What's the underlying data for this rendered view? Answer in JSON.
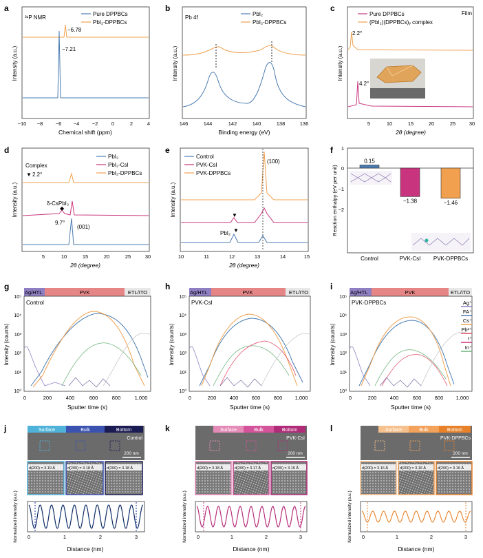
{
  "colors": {
    "blue": "#4a7bb0",
    "orange": "#f0a04e",
    "magenta": "#c8357e",
    "purple": "#8f7fc2",
    "green": "#6db37a",
    "red": "#e0506a",
    "grey": "#c7c7c7",
    "navy": "#1c1c54",
    "sky": "#4fb3d9"
  },
  "panels": {
    "a": {
      "letter": "a",
      "inner_title": "³¹P NMR",
      "xlabel": "Chemical shift (ppm)",
      "ylabel": "Intensity (a.u.)",
      "xticks": [
        "−10",
        "−8",
        "−6",
        "−4",
        "−2",
        "0",
        "2",
        "4"
      ],
      "legend": [
        "Pure DPPBCs",
        "PbI₂-DPPBCs"
      ],
      "annotations": [
        "−6.78",
        "−7.21"
      ]
    },
    "b": {
      "letter": "b",
      "inner_title": "Pb 4f",
      "xlabel": "Binding energy (eV)",
      "ylabel": "Intensity (a.u.)",
      "xticks": [
        "146",
        "144",
        "142",
        "140",
        "138",
        "136"
      ],
      "legend": [
        "PbI₂",
        "PbI₂-DPPBCs"
      ]
    },
    "c": {
      "letter": "c",
      "inner_title": "Film",
      "xlabel": "2θ (degree)",
      "ylabel": "Intensity (a.u.)",
      "xticks": [
        "5",
        "10",
        "15",
        "20",
        "25",
        "30"
      ],
      "legend": [
        "Pure DPPBCs",
        "(PbI₂)(DPPBCs)ᵧ complex"
      ],
      "annotations": [
        "2.2°",
        "4.2°"
      ]
    },
    "d": {
      "letter": "d",
      "xlabel": "2θ (degree)",
      "ylabel": "Intensity (a.u.)",
      "xticks": [
        "5",
        "10",
        "15",
        "20",
        "25",
        "30"
      ],
      "legend": [
        "PbI₂",
        "PbI₂-CsI",
        "PbI₂-DPPBCs"
      ],
      "annotations": [
        "Complex",
        "2.2°",
        "δ-CsPbI₃",
        "9.7°",
        "(001)"
      ]
    },
    "e": {
      "letter": "e",
      "xlabel": "2θ (degree)",
      "ylabel": "Intensity (a.u.)",
      "xticks": [
        "10",
        "11",
        "12",
        "13",
        "14",
        "15"
      ],
      "legend": [
        "Control",
        "PVK-CsI",
        "PVK-DPPBCs"
      ],
      "annotations": [
        "(100)",
        "PbI₂"
      ]
    },
    "f": {
      "letter": "f",
      "ylabel": "Reaction enthalpy (eV per unit)",
      "yticks": [
        "1",
        "0",
        "−1",
        "−2"
      ],
      "ylim": [
        -2,
        1
      ]
    },
    "g": {
      "letter": "g",
      "sample": "Control"
    },
    "h": {
      "letter": "h",
      "sample": "PVK-CsI"
    },
    "i": {
      "letter": "i",
      "sample": "PVK-DPPBCs"
    },
    "sputter": {
      "xlabel": "Sputter time (s)",
      "ylabel": "Intensity (counts)",
      "xticks": [
        "0",
        "200",
        "400",
        "600",
        "800",
        "1,000"
      ],
      "yticks": [
        "10⁰",
        "10¹",
        "10²",
        "10³",
        "10⁴",
        "10⁵"
      ],
      "layers": [
        "Ag/HTL",
        "PVK",
        "ETL/ITO"
      ],
      "ions": [
        "Ag⁺",
        "FA⁺",
        "Cs⁺",
        "Pb²⁺",
        "I⁺",
        "In⁺"
      ]
    },
    "j": {
      "letter": "j",
      "sample": "Control",
      "d_values": [
        "3.19 Å",
        "3.18 Å",
        "3.18 Å"
      ]
    },
    "k": {
      "letter": "k",
      "sample": "PVK-CsI",
      "d_values": [
        "3.18 Å",
        "3.17 Å",
        "3.15 Å"
      ]
    },
    "l": {
      "letter": "l",
      "sample": "PVK-DPPBCs",
      "d_values": [
        "3.16 Å",
        "3.16 Å",
        "3.16 Å"
      ]
    },
    "tem": {
      "regions": [
        "Surface",
        "Bulk",
        "Bottom"
      ],
      "scale": "200 nm",
      "d_label": "d(200) =",
      "xlabel": "Distance (nm)",
      "ylabel": "Normalized intensity (a.u.)",
      "xticks": [
        "0",
        "1",
        "2",
        "3"
      ]
    }
  },
  "chart_data": [
    {
      "panel": "f",
      "type": "bar",
      "categories": [
        "Control",
        "PVK-CsI",
        "PVK-DPPBCs"
      ],
      "values": [
        0.15,
        -1.38,
        -1.46
      ],
      "labels": [
        "0.15",
        "−1.38",
        "−1.46"
      ],
      "ylabel": "Reaction enthalpy (eV per unit)",
      "ylim": [
        -2,
        1
      ],
      "colors": [
        "#4a7bb0",
        "#c8357e",
        "#f0a04e"
      ]
    },
    {
      "panel": "a",
      "type": "line",
      "x_range": [
        -10,
        4
      ],
      "series": [
        {
          "name": "Pure DPPBCs",
          "peaks": [
            [
              -7.21,
              1.0
            ]
          ]
        },
        {
          "name": "PbI₂-DPPBCs",
          "peaks": [
            [
              -6.78,
              0.6
            ]
          ]
        }
      ]
    },
    {
      "panel": "c",
      "type": "line",
      "x_range": [
        0,
        30
      ],
      "series": [
        {
          "name": "Pure DPPBCs",
          "peaks": [
            [
              4.2,
              1.0
            ]
          ]
        },
        {
          "name": "(PbI₂)(DPPBCs)ᵧ complex",
          "peaks": [
            [
              2.2,
              0.6
            ]
          ]
        }
      ]
    }
  ]
}
